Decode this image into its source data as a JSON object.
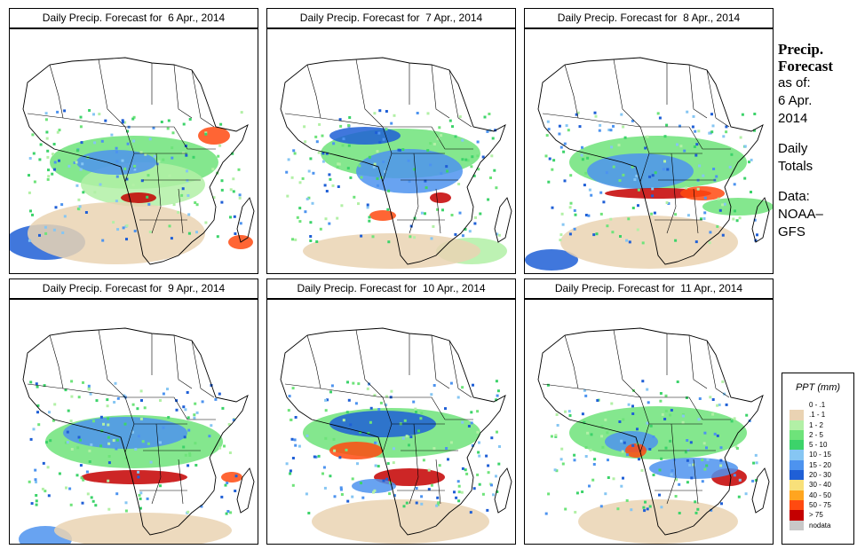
{
  "panels": [
    {
      "title": "Daily Precip. Forecast for  6 Apr., 2014"
    },
    {
      "title": "Daily Precip. Forecast for  7 Apr., 2014"
    },
    {
      "title": "Daily Precip. Forecast for  8 Apr., 2014"
    },
    {
      "title": "Daily Precip. Forecast for  9 Apr., 2014"
    },
    {
      "title": "Daily Precip. Forecast for  10 Apr., 2014"
    },
    {
      "title": "Daily Precip. Forecast for  11 Apr., 2014"
    }
  ],
  "side": {
    "heading1": "Precip.",
    "heading2": "Forecast",
    "asof": "as of:",
    "date1": "6 Apr.",
    "date2": "2014",
    "daily1": "Daily",
    "daily2": "Totals",
    "data1": "Data:",
    "data2": "NOAA–",
    "data3": "GFS"
  },
  "legend": {
    "title": "PPT (mm)",
    "items": [
      {
        "label": "0 - .1",
        "color": "#ffffff"
      },
      {
        "label": ".1 - 1",
        "color": "#ead3b3"
      },
      {
        "label": "1 - 2",
        "color": "#b2f0a6"
      },
      {
        "label": "2 - 5",
        "color": "#6ee37a"
      },
      {
        "label": "5 - 10",
        "color": "#3cd36a"
      },
      {
        "label": "10 - 15",
        "color": "#86c6f3"
      },
      {
        "label": "15 - 20",
        "color": "#4d93ef"
      },
      {
        "label": "20 - 30",
        "color": "#1f5fd6"
      },
      {
        "label": "30 - 40",
        "color": "#f8e07a"
      },
      {
        "label": "40 - 50",
        "color": "#ffa51f"
      },
      {
        "label": "50 - 75",
        "color": "#ff4a10"
      },
      {
        "label": "> 75",
        "color": "#c40000"
      },
      {
        "label": "nodata",
        "color": "#c8c8c8"
      }
    ]
  }
}
